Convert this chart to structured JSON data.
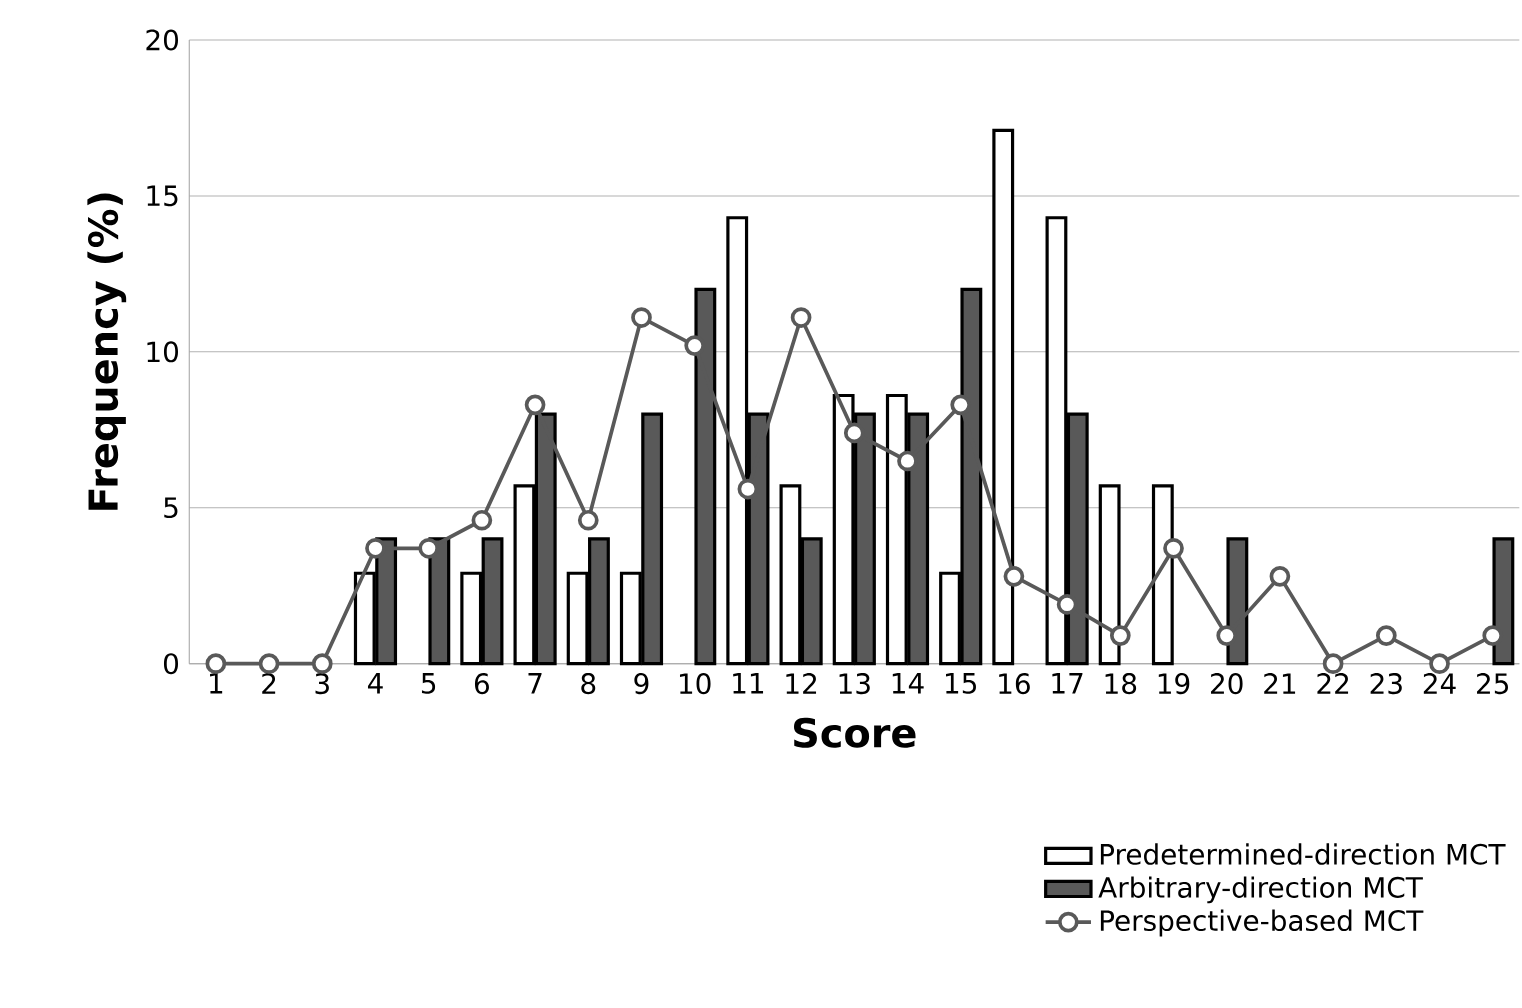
{
  "chart_data": {
    "type": "bar",
    "xlabel": "Score",
    "ylabel": "Frequency (%)",
    "categories": [
      "1",
      "2",
      "3",
      "4",
      "5",
      "6",
      "7",
      "8",
      "9",
      "10",
      "11",
      "12",
      "13",
      "14",
      "15",
      "16",
      "17",
      "18",
      "19",
      "20",
      "21",
      "22",
      "23",
      "24",
      "25"
    ],
    "series": [
      {
        "name": "Predetermined-direction MCT",
        "color": "#ffffff",
        "values": [
          0,
          0,
          0,
          2.9,
          0,
          2.9,
          5.7,
          2.9,
          2.9,
          0,
          14.3,
          5.7,
          8.6,
          8.6,
          2.9,
          17.1,
          14.3,
          5.7,
          5.7,
          0,
          0,
          0,
          0,
          0,
          0
        ]
      },
      {
        "name": "Arbitrary-direction MCT",
        "color": "#595959",
        "values": [
          0,
          0,
          0,
          4,
          4,
          4,
          8,
          4,
          8,
          12,
          8,
          4,
          8,
          8,
          12,
          0,
          8,
          0,
          0,
          4,
          0,
          0,
          0,
          0,
          4
        ]
      },
      {
        "name": "Perspective-based MCT",
        "type": "line",
        "color": "#595959",
        "marker": "circle",
        "values": [
          0,
          0,
          0,
          3.7,
          3.7,
          4.6,
          8.3,
          4.6,
          11.1,
          10.2,
          5.6,
          11.1,
          7.4,
          6.5,
          8.3,
          2.8,
          1.9,
          0.9,
          3.7,
          0.9,
          2.8,
          0,
          0.9,
          0,
          0.9
        ]
      }
    ],
    "ylim": [
      0,
      20
    ],
    "yticks": [
      0,
      5,
      10,
      15,
      20
    ],
    "grid": "y",
    "legend": "bottom right"
  }
}
